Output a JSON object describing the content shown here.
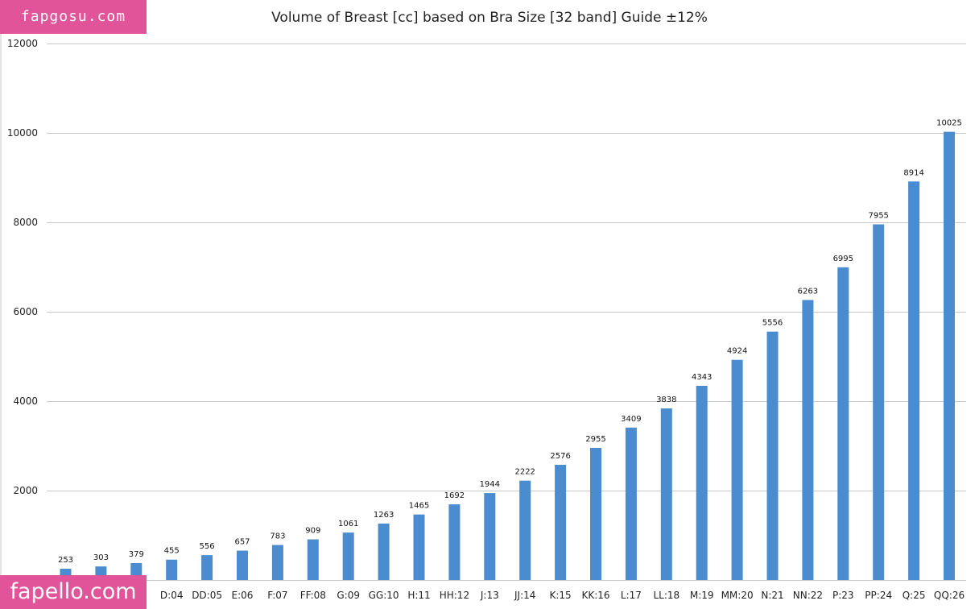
{
  "watermarks": {
    "top": "fapgosu.com",
    "bottom": "fapello.com"
  },
  "colors": {
    "bar": "#4a8ccf",
    "grid": "#c8c8c8",
    "watermark": "#e2549a"
  },
  "chart_data": {
    "type": "bar",
    "title": "Volume of Breast [cc] based on Bra Size [32 band] Guide ±12%",
    "xlabel": "",
    "ylabel": "",
    "ylim": [
      0,
      12000
    ],
    "yticks": [
      "0",
      "2000",
      "4000",
      "6000",
      "8000",
      "10000",
      "12000"
    ],
    "grid": true,
    "categories": [
      "",
      "",
      "",
      "D:04",
      "DD:05",
      "E:06",
      "F:07",
      "FF:08",
      "G:09",
      "GG:10",
      "H:11",
      "HH:12",
      "J:13",
      "JJ:14",
      "K:15",
      "KK:16",
      "L:17",
      "LL:18",
      "M:19",
      "MM:20",
      "N:21",
      "NN:22",
      "P:23",
      "PP:24",
      "Q:25",
      "QQ:26"
    ],
    "values": [
      253,
      303,
      379,
      455,
      556,
      657,
      783,
      909,
      1061,
      1263,
      1465,
      1692,
      1944,
      2222,
      2576,
      2955,
      3409,
      3838,
      4343,
      4924,
      5556,
      6263,
      6995,
      7955,
      8914,
      10025
    ]
  }
}
